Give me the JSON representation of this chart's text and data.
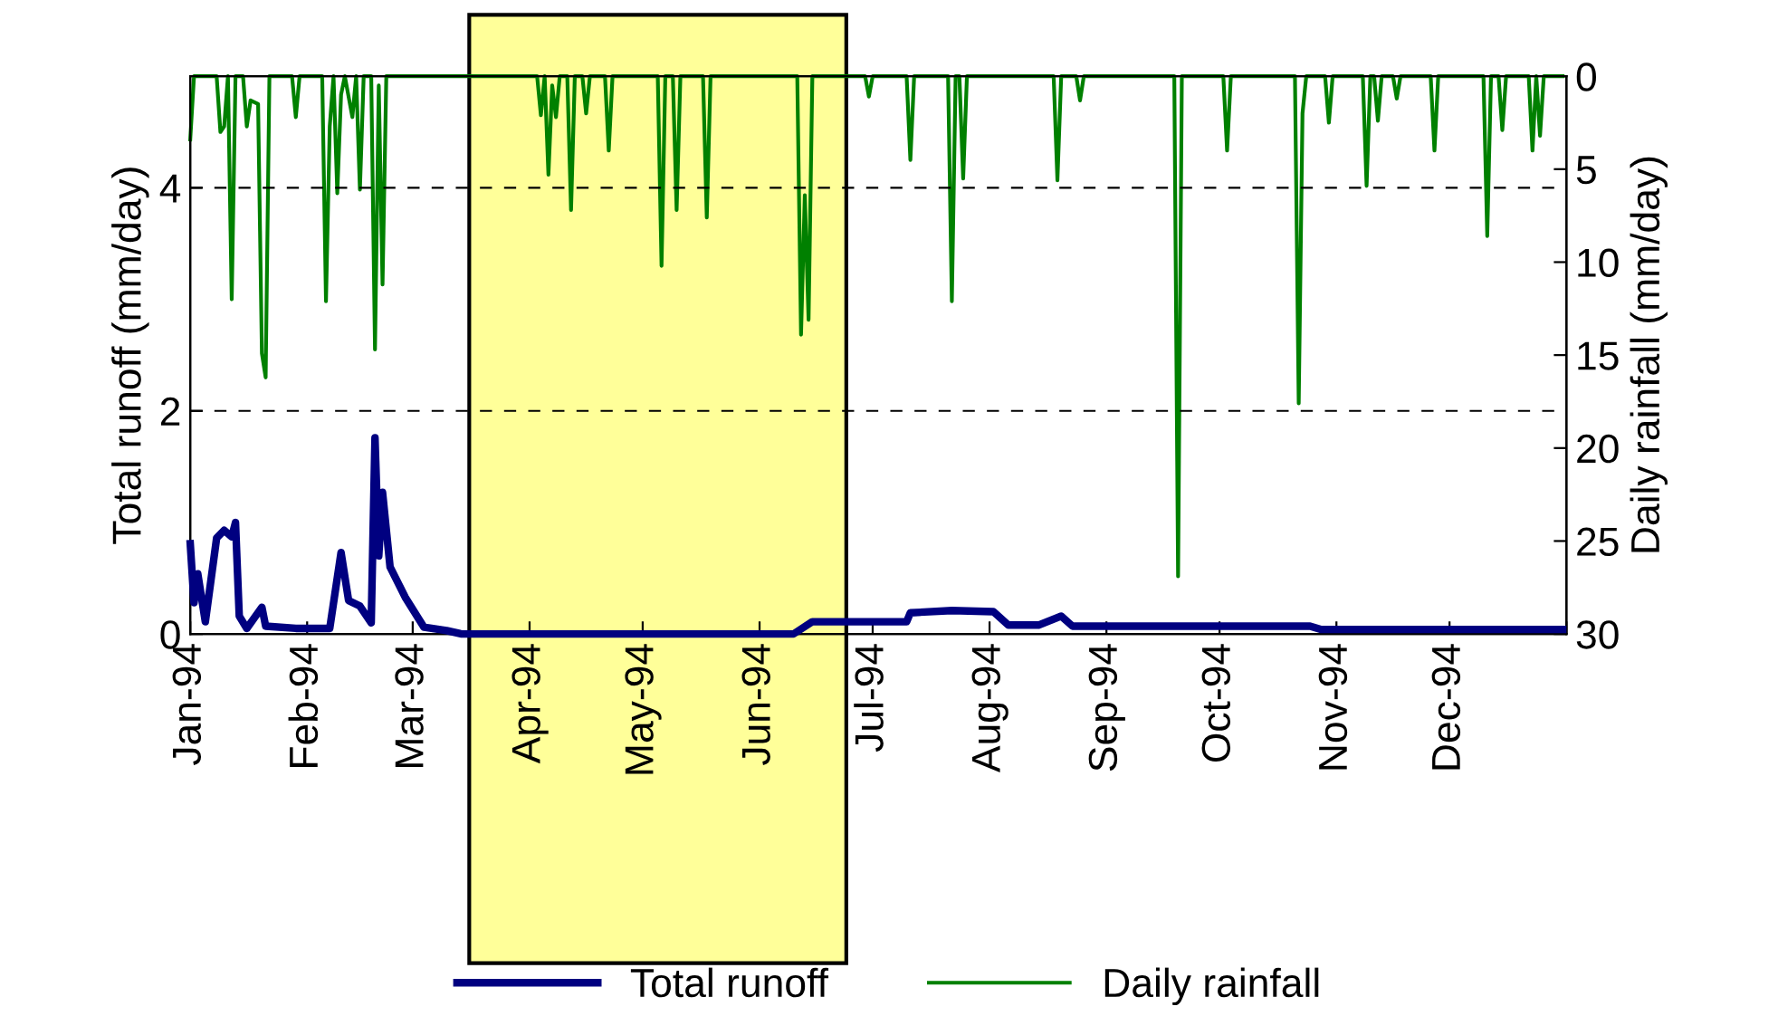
{
  "chart_data": {
    "type": "line",
    "ylabel": "Total runoff (mm/day)",
    "y2label": "Daily rainfall (mm/day)",
    "xlim": [
      "1994-01-01",
      "1995-01-01"
    ],
    "xticks": [
      {
        "value": "1994-01-01",
        "label": "Jan-94"
      },
      {
        "value": "1994-02-01",
        "label": "Feb-94"
      },
      {
        "value": "1994-03-01",
        "label": "Mar-94"
      },
      {
        "value": "1994-04-01",
        "label": "Apr-94"
      },
      {
        "value": "1994-05-01",
        "label": "May-94"
      },
      {
        "value": "1994-06-01",
        "label": "Jun-94"
      },
      {
        "value": "1994-07-01",
        "label": "Jul-94"
      },
      {
        "value": "1994-08-01",
        "label": "Aug-94"
      },
      {
        "value": "1994-09-01",
        "label": "Sep-94"
      },
      {
        "value": "1994-10-01",
        "label": "Oct-94"
      },
      {
        "value": "1994-11-01",
        "label": "Nov-94"
      },
      {
        "value": "1994-12-01",
        "label": "Dec-94"
      },
      {
        "value": "1995-01-01",
        "label": null
      }
    ],
    "ylim": [
      0,
      5
    ],
    "yticks": [
      0,
      2,
      4
    ],
    "y2lim": [
      30,
      0
    ],
    "y2ticks": [
      0,
      5,
      10,
      15,
      20,
      25,
      30
    ],
    "grid": "y",
    "legend": "bottom",
    "bands": [
      {
        "axis": "x",
        "from": "1994-03-16",
        "to": "1994-06-24",
        "color": "#ffff99"
      }
    ],
    "series": [
      {
        "name": "Total runoff",
        "color": "#000080",
        "x": [
          "1994-01-01",
          "1994-01-02",
          "1994-01-03",
          "1994-01-05",
          "1994-01-08",
          "1994-01-10",
          "1994-01-12",
          "1994-01-13",
          "1994-01-14",
          "1994-01-16",
          "1994-01-20",
          "1994-01-21",
          "1994-01-29",
          "1994-02-07",
          "1994-02-10",
          "1994-02-12",
          "1994-02-15",
          "1994-02-18",
          "1994-02-19",
          "1994-02-20",
          "1994-02-21",
          "1994-02-23",
          "1994-02-27",
          "1994-03-04",
          "1994-03-10",
          "1994-03-14",
          "1994-06-10",
          "1994-06-15",
          "1994-07-10",
          "1994-07-11",
          "1994-07-22",
          "1994-08-02",
          "1994-08-06",
          "1994-08-14",
          "1994-08-20",
          "1994-08-23",
          "1994-10-25",
          "1994-10-28",
          "1994-12-31"
        ],
        "values": [
          0.81,
          0.28,
          0.54,
          0.11,
          0.86,
          0.93,
          0.87,
          1.0,
          0.16,
          0.05,
          0.24,
          0.07,
          0.05,
          0.05,
          0.73,
          0.3,
          0.25,
          0.1,
          1.76,
          0.7,
          1.27,
          0.6,
          0.33,
          0.06,
          0.03,
          0.0,
          0.0,
          0.11,
          0.11,
          0.19,
          0.21,
          0.2,
          0.08,
          0.08,
          0.16,
          0.07,
          0.07,
          0.04,
          0.04
        ]
      },
      {
        "name": "Daily rainfall",
        "color": "#008000",
        "axis": "y2",
        "x": [
          "1994-01-01",
          "1994-01-02",
          "1994-01-08",
          "1994-01-09",
          "1994-01-10",
          "1994-01-11",
          "1994-01-12",
          "1994-01-13",
          "1994-01-15",
          "1994-01-16",
          "1994-01-17",
          "1994-01-19",
          "1994-01-20",
          "1994-01-21",
          "1994-01-22",
          "1994-01-28",
          "1994-01-29",
          "1994-01-30",
          "1994-02-05",
          "1994-02-06",
          "1994-02-07",
          "1994-02-08",
          "1994-02-09",
          "1994-02-10",
          "1994-02-11",
          "1994-02-13",
          "1994-02-14",
          "1994-02-15",
          "1994-02-16",
          "1994-02-18",
          "1994-02-19",
          "1994-02-20",
          "1994-02-21",
          "1994-02-22",
          "1994-04-03",
          "1994-04-04",
          "1994-04-05",
          "1994-04-06",
          "1994-04-07",
          "1994-04-08",
          "1994-04-09",
          "1994-04-11",
          "1994-04-12",
          "1994-04-13",
          "1994-04-15",
          "1994-04-16",
          "1994-04-17",
          "1994-04-21",
          "1994-04-22",
          "1994-04-23",
          "1994-05-05",
          "1994-05-06",
          "1994-05-07",
          "1994-05-09",
          "1994-05-10",
          "1994-05-11",
          "1994-05-17",
          "1994-05-18",
          "1994-05-19",
          "1994-06-11",
          "1994-06-12",
          "1994-06-13",
          "1994-06-14",
          "1994-06-15",
          "1994-06-29",
          "1994-06-30",
          "1994-07-01",
          "1994-07-10",
          "1994-07-11",
          "1994-07-12",
          "1994-07-21",
          "1994-07-22",
          "1994-07-23",
          "1994-07-24",
          "1994-07-25",
          "1994-07-26",
          "1994-08-18",
          "1994-08-19",
          "1994-08-20",
          "1994-08-24",
          "1994-08-25",
          "1994-08-26",
          "1994-09-19",
          "1994-09-20",
          "1994-09-21",
          "1994-10-02",
          "1994-10-03",
          "1994-10-04",
          "1994-10-21",
          "1994-10-22",
          "1994-10-23",
          "1994-10-24",
          "1994-10-29",
          "1994-10-30",
          "1994-10-31",
          "1994-11-08",
          "1994-11-09",
          "1994-11-10",
          "1994-11-11",
          "1994-11-12",
          "1994-11-13",
          "1994-11-16",
          "1994-11-17",
          "1994-11-18",
          "1994-11-26",
          "1994-11-27",
          "1994-11-28",
          "1994-12-10",
          "1994-12-11",
          "1994-12-12",
          "1994-12-14",
          "1994-12-15",
          "1994-12-16",
          "1994-12-22",
          "1994-12-23",
          "1994-12-24",
          "1994-12-25",
          "1994-12-26",
          "1994-12-31"
        ],
        "values": [
          3.4,
          0,
          0,
          3.0,
          2.7,
          0,
          12.0,
          0,
          0,
          2.7,
          1.3,
          1.5,
          14.9,
          16.2,
          0,
          0,
          2.2,
          0,
          0,
          12.1,
          2.7,
          0,
          6.3,
          1.0,
          0,
          2.2,
          0,
          6.1,
          0,
          0,
          14.7,
          0.5,
          11.2,
          0,
          0,
          2.1,
          0,
          5.3,
          0.5,
          2.2,
          0,
          0,
          7.2,
          0,
          0,
          2.0,
          0,
          0,
          4.0,
          0,
          0,
          10.2,
          0,
          0,
          7.2,
          0,
          0,
          7.6,
          0,
          0,
          13.9,
          6.4,
          13.1,
          0,
          0,
          1.1,
          0,
          0,
          4.5,
          0,
          0,
          12.1,
          0,
          0,
          5.5,
          0,
          0,
          5.6,
          0,
          0,
          1.3,
          0,
          0,
          26.9,
          0,
          0,
          4.0,
          0,
          0,
          17.6,
          2.0,
          0,
          0,
          2.5,
          0,
          0,
          5.9,
          0,
          0,
          2.4,
          0,
          0,
          1.2,
          0,
          0,
          4.0,
          0,
          0,
          8.6,
          0,
          0,
          2.9,
          0,
          0,
          4.0,
          0,
          3.2,
          0,
          0
        ]
      }
    ]
  }
}
